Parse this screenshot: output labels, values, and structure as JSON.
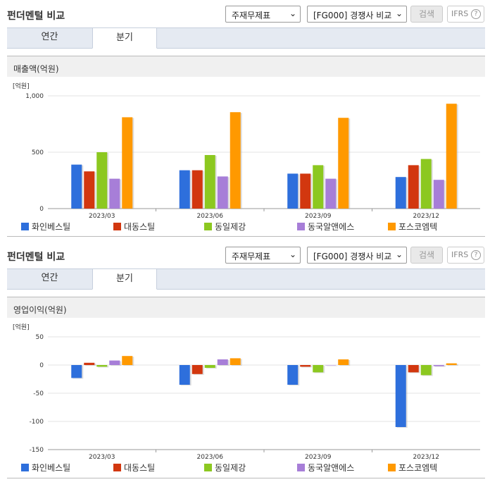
{
  "panels": [
    {
      "header": {
        "title": "펀더멘털 비교",
        "select1": "주재무제표",
        "select2": "[FG000] 경쟁사 비교",
        "search_label": "검색",
        "ifrs_label": "IFRS",
        "help_label": "?"
      },
      "tabs": [
        {
          "label": "연간",
          "active": false
        },
        {
          "label": "분기",
          "active": true
        }
      ],
      "metric_title": "매출액(억원)"
    },
    {
      "header": {
        "title": "펀더멘털 비교",
        "select1": "주재무제표",
        "select2": "[FG000] 경쟁사 비교",
        "search_label": "검색",
        "ifrs_label": "IFRS",
        "help_label": "?"
      },
      "tabs": [
        {
          "label": "연간",
          "active": false
        },
        {
          "label": "분기",
          "active": true
        }
      ],
      "metric_title": "영업이익(억원)"
    }
  ],
  "colors": {
    "화인베스틸": "#2e6fdc",
    "대동스틸": "#d2370f",
    "동일제강": "#8cc820",
    "동국알앤에스": "#a77ed8",
    "포스코엠텍": "#ff9900"
  },
  "chart_data": [
    {
      "type": "bar",
      "unit_label": "[억원]",
      "categories": [
        "2023/03",
        "2023/06",
        "2023/09",
        "2023/12"
      ],
      "ylim": [
        0,
        1000
      ],
      "yticks": [
        0,
        500,
        1000
      ],
      "ytick_labels": [
        "0",
        "500",
        "1,000"
      ],
      "series": [
        {
          "name": "화인베스틸",
          "color": "#2e6fdc",
          "values": [
            390,
            340,
            310,
            280
          ]
        },
        {
          "name": "대동스틸",
          "color": "#d2370f",
          "values": [
            330,
            340,
            310,
            385
          ]
        },
        {
          "name": "동일제강",
          "color": "#8cc820",
          "values": [
            500,
            475,
            385,
            440
          ]
        },
        {
          "name": "동국알앤에스",
          "color": "#a77ed8",
          "values": [
            265,
            285,
            265,
            255
          ]
        },
        {
          "name": "포스코엠텍",
          "color": "#ff9900",
          "values": [
            810,
            855,
            805,
            930
          ]
        }
      ],
      "grid": true,
      "legend": "bottom"
    },
    {
      "type": "bar",
      "unit_label": "[억원]",
      "categories": [
        "2023/03",
        "2023/06",
        "2023/09",
        "2023/12"
      ],
      "ylim": [
        -150,
        50
      ],
      "yticks": [
        -150,
        -100,
        -50,
        0,
        50
      ],
      "ytick_labels": [
        "-150",
        "-100",
        "-50",
        "0",
        "50"
      ],
      "series": [
        {
          "name": "화인베스틸",
          "color": "#2e6fdc",
          "values": [
            -23,
            -35,
            -35,
            -110
          ]
        },
        {
          "name": "대동스틸",
          "color": "#d2370f",
          "values": [
            4,
            -16,
            -3,
            -13
          ]
        },
        {
          "name": "동일제강",
          "color": "#8cc820",
          "values": [
            -3,
            -5,
            -13,
            -18
          ]
        },
        {
          "name": "동국알앤에스",
          "color": "#a77ed8",
          "values": [
            8,
            10,
            0,
            -2
          ]
        },
        {
          "name": "포스코엠텍",
          "color": "#ff9900",
          "values": [
            16,
            12,
            10,
            3
          ]
        }
      ],
      "grid": true,
      "legend": "bottom"
    }
  ]
}
